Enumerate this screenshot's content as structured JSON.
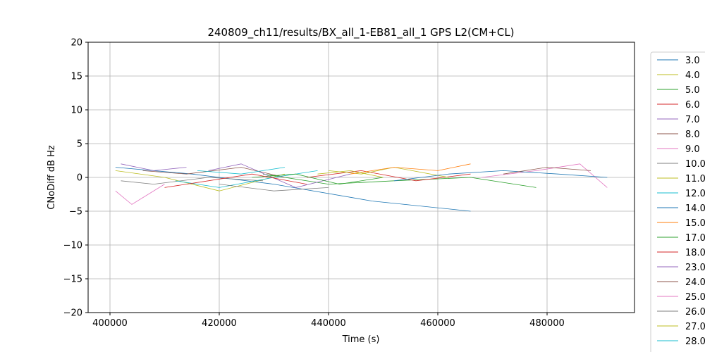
{
  "chart_data": {
    "type": "line",
    "title": "240809_ch11/results/BX_all_1-EB81_all_1 GPS L2(CM+CL)",
    "xlabel": "Time (s)",
    "ylabel": "CNoDiff dB Hz",
    "xlim": [
      396000,
      496000
    ],
    "ylim": [
      -20,
      20
    ],
    "xticks": [
      400000,
      420000,
      440000,
      460000,
      480000
    ],
    "xtick_labels": [
      "400000",
      "420000",
      "440000",
      "460000",
      "480000"
    ],
    "yticks": [
      -20,
      -15,
      -10,
      -5,
      0,
      5,
      10,
      15,
      20
    ],
    "ytick_labels": [
      "−20",
      "−15",
      "−10",
      "−5",
      "0",
      "5",
      "10",
      "15",
      "20"
    ],
    "grid": true,
    "legend_position": "right, outside plot",
    "series": [
      {
        "name": "3.0",
        "color": "#1f77b4",
        "x": [
          401000,
          415000,
          430000,
          448000,
          466000
        ],
        "y": [
          1.5,
          0.5,
          -1.0,
          -3.5,
          -5.0
        ]
      },
      {
        "name": "4.0",
        "color": "#bcbd22",
        "x": [
          401000,
          410000,
          420000,
          432000
        ],
        "y": [
          1.0,
          0.0,
          -2.0,
          0.5
        ]
      },
      {
        "name": "5.0",
        "color": "#2ca02c",
        "x": [
          428000,
          440000,
          452000,
          466000,
          478000
        ],
        "y": [
          0.5,
          -1.0,
          -0.5,
          0.0,
          -1.5
        ]
      },
      {
        "name": "6.0",
        "color": "#d62728",
        "x": [
          436000,
          446000,
          456000,
          466000
        ],
        "y": [
          0.0,
          1.0,
          -0.5,
          0.5
        ]
      },
      {
        "name": "7.0",
        "color": "#9467bd",
        "x": [
          418000,
          424000,
          434000,
          444000
        ],
        "y": [
          1.0,
          2.0,
          -1.5,
          0.5
        ]
      },
      {
        "name": "8.0",
        "color": "#8c564b",
        "x": [
          406000,
          414000,
          424000,
          432000
        ],
        "y": [
          1.0,
          0.5,
          1.5,
          0.0
        ]
      },
      {
        "name": "9.0",
        "color": "#e377c2",
        "x": [
          468000,
          478000,
          486000,
          491000
        ],
        "y": [
          0.0,
          1.0,
          2.0,
          -1.5
        ]
      },
      {
        "name": "10.0",
        "color": "#7f7f7f",
        "x": [
          402000,
          408000,
          418000,
          428000
        ],
        "y": [
          -0.5,
          -1.0,
          0.0,
          -0.5
        ]
      },
      {
        "name": "11.0",
        "color": "#bcbd22",
        "x": [
          440000,
          446000,
          452000,
          462000
        ],
        "y": [
          1.0,
          0.5,
          1.5,
          0.0
        ]
      },
      {
        "name": "12.0",
        "color": "#17becf",
        "x": [
          412000,
          420000,
          430000,
          438000
        ],
        "y": [
          -0.5,
          -1.5,
          0.0,
          1.0
        ]
      },
      {
        "name": "14.0",
        "color": "#1f77b4",
        "x": [
          452000,
          462000,
          472000,
          482000,
          491000
        ],
        "y": [
          -0.5,
          0.5,
          1.0,
          0.5,
          0.0
        ]
      },
      {
        "name": "15.0",
        "color": "#ff7f0e",
        "x": [
          444000,
          452000,
          460000,
          466000
        ],
        "y": [
          0.5,
          1.5,
          1.0,
          2.0
        ]
      },
      {
        "name": "17.0",
        "color": "#2ca02c",
        "x": [
          426000,
          434000,
          442000,
          450000
        ],
        "y": [
          0.0,
          0.5,
          -1.0,
          0.0
        ]
      },
      {
        "name": "18.0",
        "color": "#d62728",
        "x": [
          410000,
          418000,
          426000,
          436000
        ],
        "y": [
          -1.5,
          -0.5,
          0.5,
          -1.0
        ]
      },
      {
        "name": "23.0",
        "color": "#9467bd",
        "x": [
          402000,
          408000,
          414000
        ],
        "y": [
          2.0,
          1.0,
          1.5
        ]
      },
      {
        "name": "24.0",
        "color": "#8c564b",
        "x": [
          472000,
          480000,
          488000
        ],
        "y": [
          0.5,
          1.5,
          1.0
        ]
      },
      {
        "name": "25.0",
        "color": "#e377c2",
        "x": [
          401000,
          404000,
          410000
        ],
        "y": [
          -2.0,
          -4.0,
          -1.0
        ]
      },
      {
        "name": "26.0",
        "color": "#7f7f7f",
        "x": [
          420000,
          430000,
          440000
        ],
        "y": [
          -1.0,
          -2.0,
          -1.5
        ]
      },
      {
        "name": "27.0",
        "color": "#bcbd22",
        "x": [
          438000,
          444000,
          450000
        ],
        "y": [
          0.5,
          1.0,
          0.0
        ]
      },
      {
        "name": "28.0",
        "color": "#17becf",
        "x": [
          416000,
          424000,
          432000
        ],
        "y": [
          1.0,
          0.5,
          1.5
        ]
      }
    ]
  }
}
